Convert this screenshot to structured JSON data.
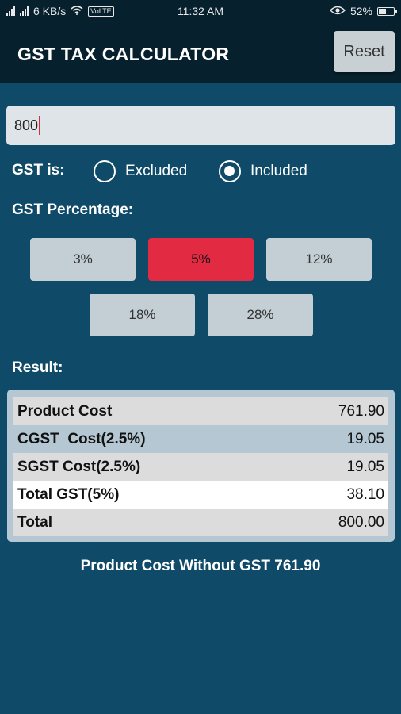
{
  "status_bar": {
    "network_speed": "6 KB/s",
    "volte": "VoLTE",
    "time": "11:32 AM",
    "battery": "52%",
    "battery_level": 0.52,
    "icons": [
      "signal-icon",
      "wifi-icon",
      "eye-icon",
      "battery-icon"
    ]
  },
  "app_bar": {
    "title": "GST TAX CALCULATOR",
    "reset_label": "Reset"
  },
  "amount": {
    "value": "800"
  },
  "gst_mode": {
    "label": "GST is:",
    "options": [
      "Excluded",
      "Included"
    ],
    "selected": "Included"
  },
  "percentage": {
    "label": "GST Percentage:",
    "options": [
      "3%",
      "5%",
      "12%",
      "18%",
      "28%"
    ],
    "selected": "5%"
  },
  "result": {
    "label": "Result:",
    "rows": [
      {
        "name": "Product Cost",
        "value": "761.90"
      },
      {
        "name": "CGST  Cost(2.5%)",
        "value": "19.05"
      },
      {
        "name": "SGST Cost(2.5%)",
        "value": "19.05"
      },
      {
        "name": "Total GST(5%)",
        "value": "38.10"
      },
      {
        "name": "Total",
        "value": "800.00"
      }
    ]
  },
  "summary": "Product Cost Without GST 761.90",
  "colors": {
    "background": "#0f4a68",
    "app_bar": "#06202d",
    "selected_percentage": "#e22a43",
    "button": "#c3ced5"
  }
}
